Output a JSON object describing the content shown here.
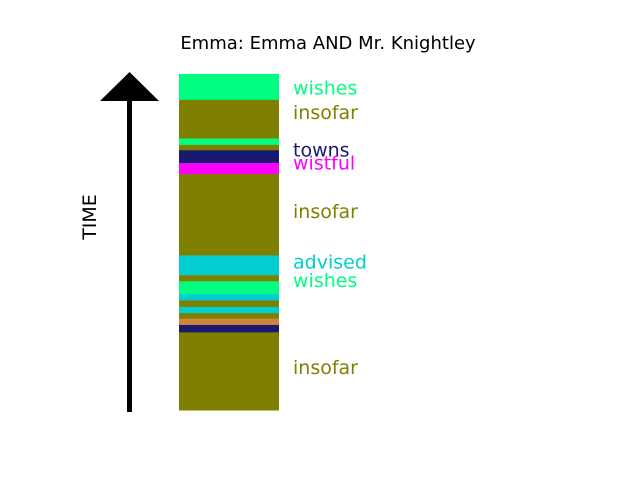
{
  "chart_data": {
    "type": "bar",
    "title": "Emma: Emma AND Mr. Knightley",
    "ylabel": "TIME",
    "xlabel": "",
    "colors": {
      "wishes": "#00ff80",
      "insofar": "#808000",
      "towns": "#191970",
      "wistful": "#ff00ff",
      "advised": "#00ced1",
      "other": "#cd853f",
      "axis": "#000000"
    },
    "segments": [
      {
        "word": "wishes",
        "start": 0,
        "end": 7.7
      },
      {
        "word": "insofar",
        "start": 7.7,
        "end": 19.2
      },
      {
        "word": "wishes",
        "start": 19.2,
        "end": 21.1
      },
      {
        "word": "insofar",
        "start": 21.1,
        "end": 22.7
      },
      {
        "word": "towns",
        "start": 22.7,
        "end": 26.5
      },
      {
        "word": "wistful",
        "start": 26.5,
        "end": 29.8
      },
      {
        "word": "insofar",
        "start": 29.8,
        "end": 54.0
      },
      {
        "word": "advised",
        "start": 54.0,
        "end": 59.9
      },
      {
        "word": "insofar",
        "start": 59.9,
        "end": 61.7
      },
      {
        "word": "wishes",
        "start": 61.7,
        "end": 65.5
      },
      {
        "word": "advised",
        "start": 65.5,
        "end": 67.4
      },
      {
        "word": "insofar",
        "start": 67.4,
        "end": 69.3
      },
      {
        "word": "advised",
        "start": 69.3,
        "end": 71.2
      },
      {
        "word": "insofar",
        "start": 71.2,
        "end": 72.8
      },
      {
        "word": "other",
        "start": 72.8,
        "end": 74.7
      },
      {
        "word": "towns",
        "start": 74.7,
        "end": 76.9
      },
      {
        "word": "insofar",
        "start": 76.9,
        "end": 100
      }
    ],
    "labels": [
      {
        "text": "wishes",
        "position": 4.4,
        "color": "#00ff80"
      },
      {
        "text": "insofar",
        "position": 11.8,
        "color": "#808000"
      },
      {
        "text": "towns",
        "position": 22.9,
        "color": "#191970"
      },
      {
        "text": "wistful",
        "position": 26.8,
        "color": "#ff00ff"
      },
      {
        "text": "insofar",
        "position": 41.2,
        "color": "#808000"
      },
      {
        "text": "advised",
        "position": 56.2,
        "color": "#00ced1"
      },
      {
        "text": "wishes",
        "position": 61.8,
        "color": "#00ff80"
      },
      {
        "text": "insofar",
        "position": 87.6,
        "color": "#808000"
      }
    ]
  }
}
